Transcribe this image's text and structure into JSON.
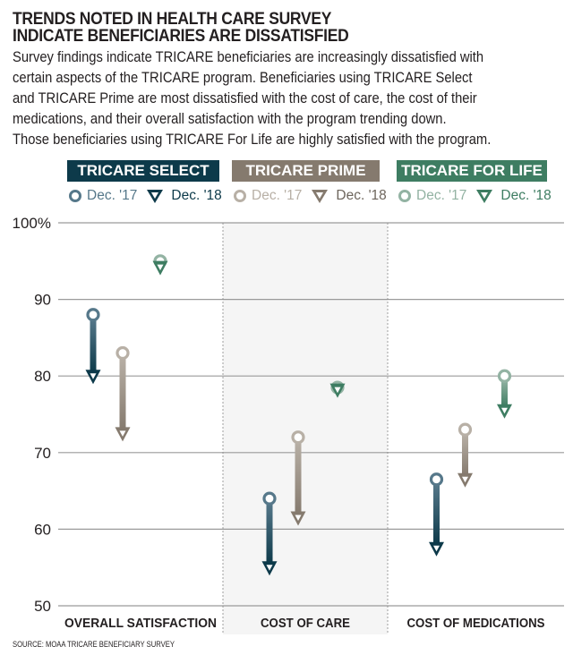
{
  "title": [
    "TRENDS NOTED IN HEALTH CARE SURVEY",
    "INDICATE BENEFICIARIES ARE DISSATISFIED"
  ],
  "description": [
    "Survey findings indicate TRICARE beneficiaries are increasingly dissatisfied with",
    "certain aspects of the TRICARE program.  Beneficiaries using TRICARE Select",
    "and TRICARE Prime are most dissatisfied with the cost of care, the cost of their",
    "medications, and their overall satisfaction with the program trending down.",
    "Those beneficiaries using TRICARE For Life are highly satisfied with the program."
  ],
  "source": "SOURCE: MOAA TRICARE BENEFICIARY SURVEY",
  "chart_data": {
    "type": "dumbbell-arrow",
    "title": "TRENDS NOTED IN HEALTH CARE SURVEY INDICATE BENEFICIARIES ARE DISSATISFIED",
    "categories": [
      "OVERALL  SATISFACTION",
      "COST OF CARE",
      "COST OF MEDICATIONS"
    ],
    "ylim": [
      50,
      100
    ],
    "yticks": [
      50,
      60,
      70,
      80,
      90,
      100
    ],
    "ytick_labels": [
      "50",
      "60",
      "70",
      "80",
      "90",
      "100%"
    ],
    "grid": true,
    "legend_placement": "top",
    "legend_markers": {
      "dec17": "Dec. '17",
      "dec18": "Dec. '18"
    },
    "series": [
      {
        "name": "TRICARE SELECT",
        "color": "#0d3a4a",
        "light": "#56788a",
        "dec17": [
          88,
          64,
          66.5
        ],
        "dec18": [
          80,
          55,
          57.5
        ]
      },
      {
        "name": "TRICARE PRIME",
        "color": "#857a6e",
        "light": "#b8b0a6",
        "dec17": [
          83,
          72,
          73
        ],
        "dec18": [
          72.5,
          61.5,
          66.5
        ]
      },
      {
        "name": "TRICARE FOR LIFE",
        "color": "#3e7d62",
        "light": "#93b3a3",
        "dec17": [
          95,
          78.5,
          80
        ],
        "dec18": [
          94.2,
          78.2,
          75.5
        ]
      }
    ]
  }
}
